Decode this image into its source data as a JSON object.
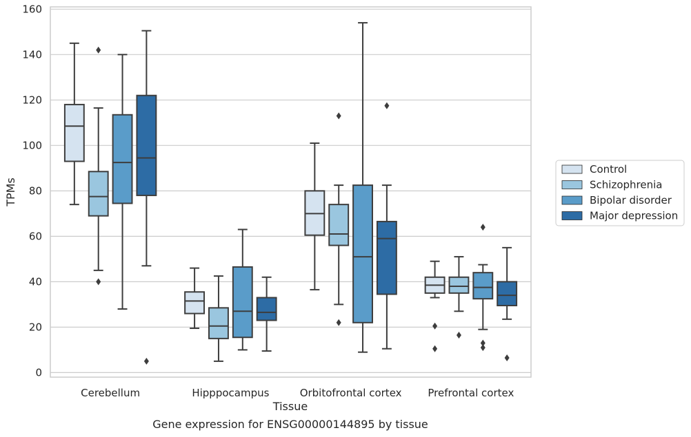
{
  "chart_data": {
    "type": "boxplot",
    "caption": "Gene expression for ENSG00000144895 by tissue",
    "xlabel": "Tissue",
    "ylabel": "TPMs",
    "ylim": [
      -2,
      161
    ],
    "yticks": [
      0,
      20,
      40,
      60,
      80,
      100,
      120,
      140,
      160
    ],
    "grid": "horizontal",
    "legend_position": "right",
    "categories": [
      "Cerebellum",
      "Hipppocampus",
      "Orbitofrontal cortex",
      "Prefrontal cortex"
    ],
    "series": [
      {
        "name": "Control",
        "color": "#d5e3f0",
        "boxes": [
          {
            "whislo": 74,
            "q1": 93,
            "med": 108.5,
            "q3": 118,
            "whishi": 145,
            "fliers": []
          },
          {
            "whislo": 19.5,
            "q1": 26,
            "med": 31.5,
            "q3": 35.5,
            "whishi": 46,
            "fliers": []
          },
          {
            "whislo": 36.5,
            "q1": 60.5,
            "med": 70,
            "q3": 80,
            "whishi": 101,
            "fliers": []
          },
          {
            "whislo": 33,
            "q1": 35,
            "med": 38.5,
            "q3": 42,
            "whishi": 49,
            "fliers": [
              20.5,
              10.5
            ]
          }
        ]
      },
      {
        "name": "Schizophrenia",
        "color": "#9ac6df",
        "boxes": [
          {
            "whislo": 45,
            "q1": 69,
            "med": 77.5,
            "q3": 88.5,
            "whishi": 116.5,
            "fliers": [
              142,
              40
            ]
          },
          {
            "whislo": 5,
            "q1": 15,
            "med": 20.5,
            "q3": 28.5,
            "whishi": 42.5,
            "fliers": []
          },
          {
            "whislo": 30,
            "q1": 56,
            "med": 61,
            "q3": 74,
            "whishi": 82.5,
            "fliers": [
              113,
              22
            ]
          },
          {
            "whislo": 27,
            "q1": 35,
            "med": 38,
            "q3": 42,
            "whishi": 51,
            "fliers": [
              16.5
            ]
          }
        ]
      },
      {
        "name": "Bipolar disorder",
        "color": "#5a9cc9",
        "boxes": [
          {
            "whislo": 28,
            "q1": 74.5,
            "med": 92.5,
            "q3": 113.5,
            "whishi": 140,
            "fliers": []
          },
          {
            "whislo": 10,
            "q1": 15.5,
            "med": 27,
            "q3": 46.5,
            "whishi": 63,
            "fliers": []
          },
          {
            "whislo": 9,
            "q1": 22,
            "med": 51,
            "q3": 82.5,
            "whishi": 154,
            "fliers": []
          },
          {
            "whislo": 19,
            "q1": 32.5,
            "med": 37.5,
            "q3": 44,
            "whishi": 47.5,
            "fliers": [
              64,
              13,
              11
            ]
          }
        ]
      },
      {
        "name": "Major depression",
        "color": "#2d6ca5",
        "boxes": [
          {
            "whislo": 47,
            "q1": 78,
            "med": 94.5,
            "q3": 122,
            "whishi": 150.5,
            "fliers": [
              5
            ]
          },
          {
            "whislo": 9.5,
            "q1": 23,
            "med": 26.5,
            "q3": 33,
            "whishi": 42,
            "fliers": []
          },
          {
            "whislo": 10.5,
            "q1": 34.5,
            "med": 59,
            "q3": 66.5,
            "whishi": 82.5,
            "fliers": [
              117.5
            ]
          },
          {
            "whislo": 23.5,
            "q1": 29.5,
            "med": 34,
            "q3": 40,
            "whishi": 55,
            "fliers": [
              6.5
            ]
          }
        ]
      }
    ]
  }
}
